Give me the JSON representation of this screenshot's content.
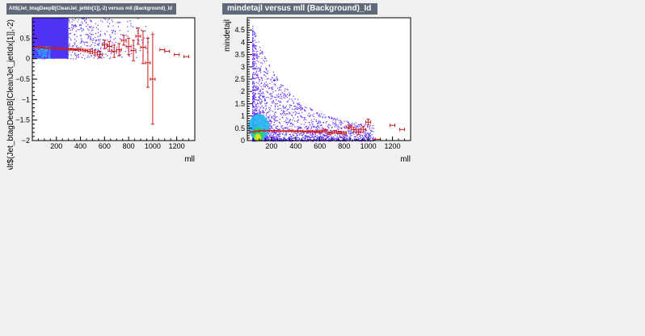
{
  "chart_data": [
    {
      "type": "heatmap",
      "title": "Alt$(Jet_btagDeepB[CleanJet_jetIdx[1]],-2) versus mll (Background)_Id",
      "xlabel": "mll",
      "ylabel": "Alt$(Jet_btagDeepB[CleanJet_jetIdx[1]],-2)",
      "xlim": [
        0,
        1350
      ],
      "ylim": [
        -2,
        1
      ],
      "x_ticks": [
        200,
        400,
        600,
        800,
        1000,
        1200
      ],
      "y_ticks": [
        -2,
        -1.5,
        -1,
        -0.5,
        0,
        0.5
      ],
      "y_tick_labels": [
        "−2",
        "−1.5",
        "−1",
        "−0.5",
        "0",
        "0.5"
      ],
      "grid": false,
      "density_region": {
        "x": [
          0,
          1000
        ],
        "y": [
          0,
          1
        ]
      },
      "profile": {
        "x": [
          40,
          80,
          120,
          160,
          200,
          240,
          280,
          320,
          360,
          400,
          440,
          480,
          520,
          560,
          600,
          640,
          680,
          720,
          760,
          800,
          840,
          880,
          920,
          960,
          1000,
          1080,
          1120,
          1200,
          1280
        ],
        "y": [
          0.28,
          0.27,
          0.26,
          0.26,
          0.25,
          0.25,
          0.24,
          0.23,
          0.22,
          0.22,
          0.2,
          0.18,
          0.15,
          0.1,
          0.35,
          0.3,
          0.18,
          0.22,
          0.45,
          0.3,
          0.2,
          0.55,
          0.28,
          -0.1,
          -0.5,
          0.22,
          0.18,
          0.1,
          0.05
        ],
        "err": [
          0.01,
          0.01,
          0.01,
          0.01,
          0.01,
          0.01,
          0.01,
          0.02,
          0.02,
          0.03,
          0.03,
          0.05,
          0.06,
          0.08,
          0.1,
          0.12,
          0.15,
          0.15,
          0.12,
          0.2,
          0.25,
          0.2,
          0.4,
          0.6,
          1.1,
          0.0,
          0.0,
          0.0,
          0.0
        ]
      }
    },
    {
      "type": "heatmap",
      "title": "mindetajl versus mll (Background)_Id",
      "xlabel": "mll",
      "ylabel": "mindetajl",
      "xlim": [
        0,
        1350
      ],
      "ylim": [
        0,
        5
      ],
      "x_ticks": [
        200,
        400,
        600,
        800,
        1000,
        1200
      ],
      "y_ticks": [
        0,
        0.5,
        1,
        1.5,
        2,
        2.5,
        3,
        3.5,
        4,
        4.5
      ],
      "y_tick_labels": [
        "0",
        "0.5",
        "1",
        "1.5",
        "2",
        "2.5",
        "3",
        "3.5",
        "4",
        "4.5"
      ],
      "grid": false,
      "profile": {
        "x": [
          40,
          80,
          120,
          160,
          200,
          240,
          280,
          320,
          360,
          400,
          440,
          480,
          520,
          560,
          600,
          640,
          680,
          720,
          760,
          800,
          840,
          880,
          920,
          960,
          1000,
          1080,
          1200,
          1280
        ],
        "y": [
          0.35,
          0.38,
          0.4,
          0.4,
          0.4,
          0.4,
          0.39,
          0.39,
          0.39,
          0.38,
          0.38,
          0.37,
          0.37,
          0.36,
          0.36,
          0.4,
          0.3,
          0.35,
          0.33,
          0.3,
          0.55,
          0.45,
          0.35,
          0.45,
          0.75,
          0.05,
          0.62,
          0.45
        ],
        "err": [
          0.01,
          0.01,
          0.01,
          0.01,
          0.01,
          0.01,
          0.01,
          0.01,
          0.02,
          0.02,
          0.02,
          0.02,
          0.03,
          0.03,
          0.04,
          0.05,
          0.05,
          0.06,
          0.05,
          0.06,
          0.08,
          0.1,
          0.1,
          0.12,
          0.12,
          0.0,
          0.0,
          0.0
        ]
      }
    }
  ]
}
